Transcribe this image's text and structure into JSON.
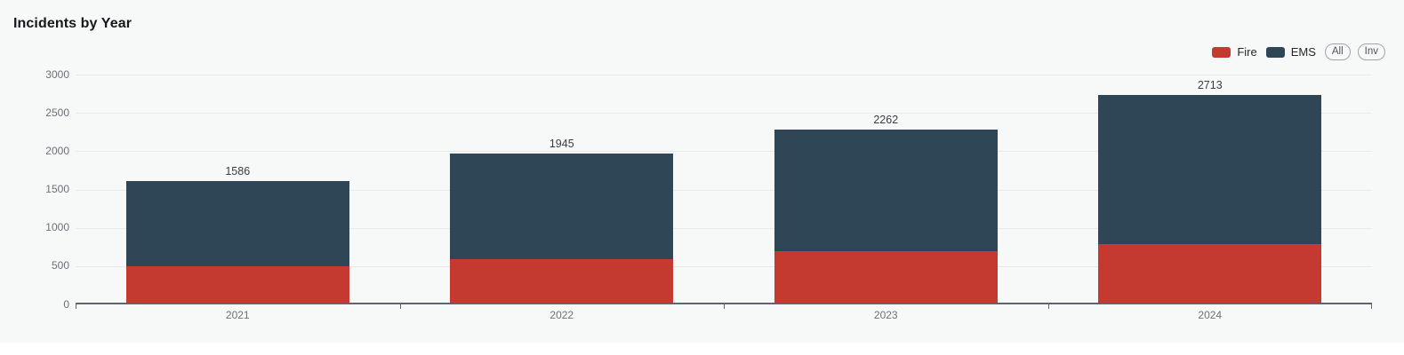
{
  "page": {
    "title": "Incidents by Year"
  },
  "legend": {
    "items": [
      {
        "label": "Fire",
        "color": "#c43a31"
      },
      {
        "label": "EMS",
        "color": "#2f4656"
      }
    ],
    "buttons": [
      {
        "label": "All"
      },
      {
        "label": "Inv"
      }
    ]
  },
  "chart_data": {
    "type": "bar",
    "stacked": true,
    "title": "Incidents by Year",
    "categories": [
      "2021",
      "2022",
      "2023",
      "2024"
    ],
    "series": [
      {
        "name": "Fire",
        "color": "#c43a31",
        "values": [
          470,
          570,
          670,
          765
        ]
      },
      {
        "name": "EMS",
        "color": "#2f4656",
        "values": [
          1116,
          1375,
          1592,
          1948
        ]
      }
    ],
    "stack_totals": [
      1586,
      1945,
      2262,
      2713
    ],
    "y_ticks": [
      0,
      500,
      1000,
      1500,
      2000,
      2500,
      3000
    ],
    "ylim": [
      0,
      3000
    ],
    "xlabel": "",
    "ylabel": "",
    "grid": true,
    "legend_position": "top-right"
  },
  "theme": {
    "card_background": "#f7f8f8",
    "gridline_color": "#e9eaec",
    "axis_color": "#5d646d",
    "tick_text_color": "#6e6e76",
    "value_label_color": "#3c3c42"
  }
}
